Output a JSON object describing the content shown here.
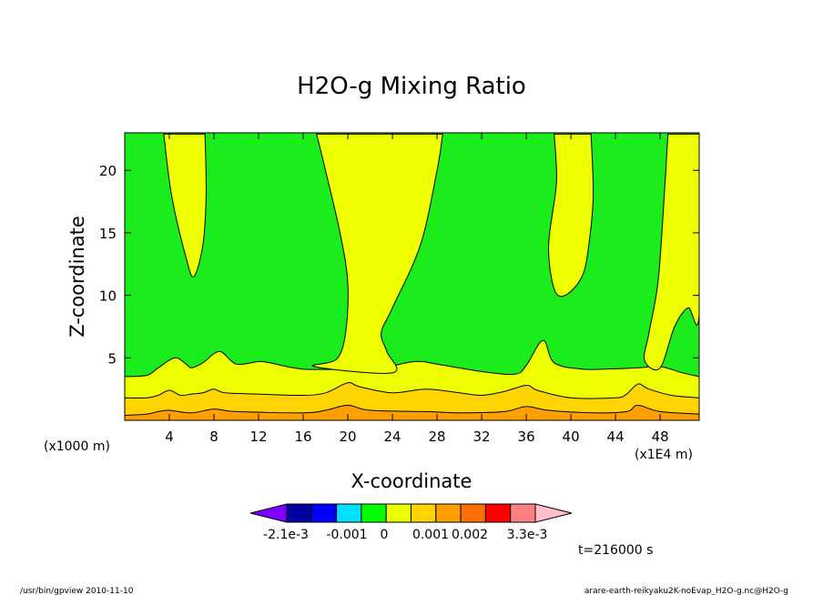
{
  "chart_data": {
    "type": "contour",
    "title": "H2O-g Mixing Ratio",
    "xlabel": "X-coordinate",
    "ylabel": "Z-coordinate",
    "x_unit": "(x1000 m)",
    "x_scale_note": "(x1E4 m)",
    "xlim": [
      0,
      51.5
    ],
    "ylim": [
      0,
      23
    ],
    "xticks": [
      4,
      8,
      12,
      16,
      20,
      24,
      28,
      32,
      36,
      40,
      44,
      48
    ],
    "yticks": [
      5,
      10,
      15,
      20
    ],
    "time_label": "t=216000 s",
    "colorbar": {
      "labels": [
        "-2.1e-3",
        "-0.001",
        "0",
        "0.001",
        "0.002",
        "3.3e-3"
      ],
      "colors": [
        "#8000ff",
        "#0000a0",
        "#0000ff",
        "#00e0ff",
        "#00ff00",
        "#e8ff00",
        "#ffd400",
        "#ff9f00",
        "#ff6e00",
        "#ff0000",
        "#ff8080",
        "#ffc0cb"
      ]
    },
    "bands": [
      {
        "name": "green",
        "color": "#1bec1b",
        "outline": [
          [
            0,
            3.5
          ],
          [
            2,
            3.6
          ],
          [
            3,
            4.2
          ],
          [
            4.5,
            5.0
          ],
          [
            5.5,
            4.5
          ],
          [
            6,
            4.2
          ],
          [
            7,
            4.6
          ],
          [
            8.5,
            5.5
          ],
          [
            10,
            4.5
          ],
          [
            12,
            4.7
          ],
          [
            13,
            4.6
          ],
          [
            16,
            4.1
          ],
          [
            20,
            4.1
          ],
          [
            23,
            4.2
          ],
          [
            26,
            4.7
          ],
          [
            28,
            4.5
          ],
          [
            32,
            3.9
          ],
          [
            35,
            3.7
          ],
          [
            36,
            4.4
          ],
          [
            37.5,
            6.4
          ],
          [
            38.5,
            4.6
          ],
          [
            41,
            4.1
          ],
          [
            43,
            4.1
          ],
          [
            46,
            4.2
          ],
          [
            48,
            4.3
          ],
          [
            50,
            3.8
          ],
          [
            51.5,
            3.5
          ]
        ]
      },
      {
        "name": "yellow-plume-1",
        "color": "#eeff00",
        "outline": [
          [
            3.5,
            22.9
          ],
          [
            4.2,
            18
          ],
          [
            5.5,
            13
          ],
          [
            6.2,
            11.5
          ],
          [
            7,
            14
          ],
          [
            7.3,
            18
          ],
          [
            7.2,
            22.9
          ]
        ]
      },
      {
        "name": "yellow-plume-2",
        "color": "#eeff00",
        "outline": [
          [
            17.2,
            22.9
          ],
          [
            18,
            20
          ],
          [
            19.3,
            15
          ],
          [
            20,
            11
          ],
          [
            19.8,
            7
          ],
          [
            19,
            4.9
          ],
          [
            17,
            4.3
          ],
          [
            24,
            3.8
          ],
          [
            23.5,
            5.5
          ],
          [
            23,
            7
          ],
          [
            24,
            9
          ],
          [
            26.5,
            14
          ],
          [
            28,
            20
          ],
          [
            28.5,
            22.9
          ]
        ]
      },
      {
        "name": "yellow-plume-3",
        "color": "#eeff00",
        "outline": [
          [
            38.5,
            22.9
          ],
          [
            38.7,
            19
          ],
          [
            38,
            14
          ],
          [
            38.5,
            10.5
          ],
          [
            39.5,
            10
          ],
          [
            41,
            11.5
          ],
          [
            41.6,
            14
          ],
          [
            42,
            18
          ],
          [
            41.8,
            22.9
          ]
        ]
      },
      {
        "name": "yellow-plume-4",
        "color": "#eeff00",
        "outline": [
          [
            48.7,
            22.9
          ],
          [
            48.3,
            17
          ],
          [
            47.8,
            11
          ],
          [
            47,
            7
          ],
          [
            46.6,
            4.8
          ],
          [
            48,
            4.2
          ],
          [
            49.3,
            7.5
          ],
          [
            50.5,
            9
          ],
          [
            51.5,
            8.5
          ],
          [
            51.5,
            22.9
          ]
        ]
      },
      {
        "name": "gold",
        "color": "#ffd400",
        "outline": [
          [
            0,
            1.8
          ],
          [
            2,
            1.8
          ],
          [
            3,
            2.0
          ],
          [
            4,
            2.4
          ],
          [
            5,
            2.0
          ],
          [
            6,
            2.1
          ],
          [
            7,
            2.2
          ],
          [
            8,
            2.5
          ],
          [
            9,
            2.2
          ],
          [
            12,
            2.1
          ],
          [
            16,
            2.0
          ],
          [
            18,
            2.2
          ],
          [
            20,
            3.0
          ],
          [
            21,
            2.7
          ],
          [
            24,
            2.2
          ],
          [
            27,
            2.5
          ],
          [
            30,
            2.2
          ],
          [
            32,
            2.0
          ],
          [
            34,
            2.3
          ],
          [
            36,
            2.8
          ],
          [
            37,
            2.4
          ],
          [
            40,
            1.8
          ],
          [
            44,
            1.8
          ],
          [
            45,
            2.1
          ],
          [
            46,
            2.9
          ],
          [
            47,
            2.5
          ],
          [
            49,
            2.0
          ],
          [
            51.5,
            1.8
          ]
        ]
      },
      {
        "name": "orange",
        "color": "#ff9f00",
        "outline": [
          [
            0,
            0.4
          ],
          [
            2,
            0.5
          ],
          [
            3,
            0.7
          ],
          [
            4,
            0.8
          ],
          [
            6,
            0.6
          ],
          [
            8,
            0.9
          ],
          [
            10,
            0.7
          ],
          [
            16,
            0.6
          ],
          [
            18,
            0.8
          ],
          [
            20,
            1.2
          ],
          [
            22,
            0.8
          ],
          [
            27,
            0.7
          ],
          [
            30,
            0.6
          ],
          [
            34,
            0.7
          ],
          [
            36,
            1.1
          ],
          [
            38,
            0.8
          ],
          [
            42,
            0.6
          ],
          [
            45,
            0.7
          ],
          [
            46,
            1.2
          ],
          [
            48,
            0.7
          ],
          [
            51.5,
            0.5
          ]
        ]
      }
    ]
  },
  "footer": {
    "left": "/usr/bin/gpview   2010-11-10",
    "right": "arare-earth-reikyaku2K-noEvap_H2O-g.nc@H2O-g"
  }
}
